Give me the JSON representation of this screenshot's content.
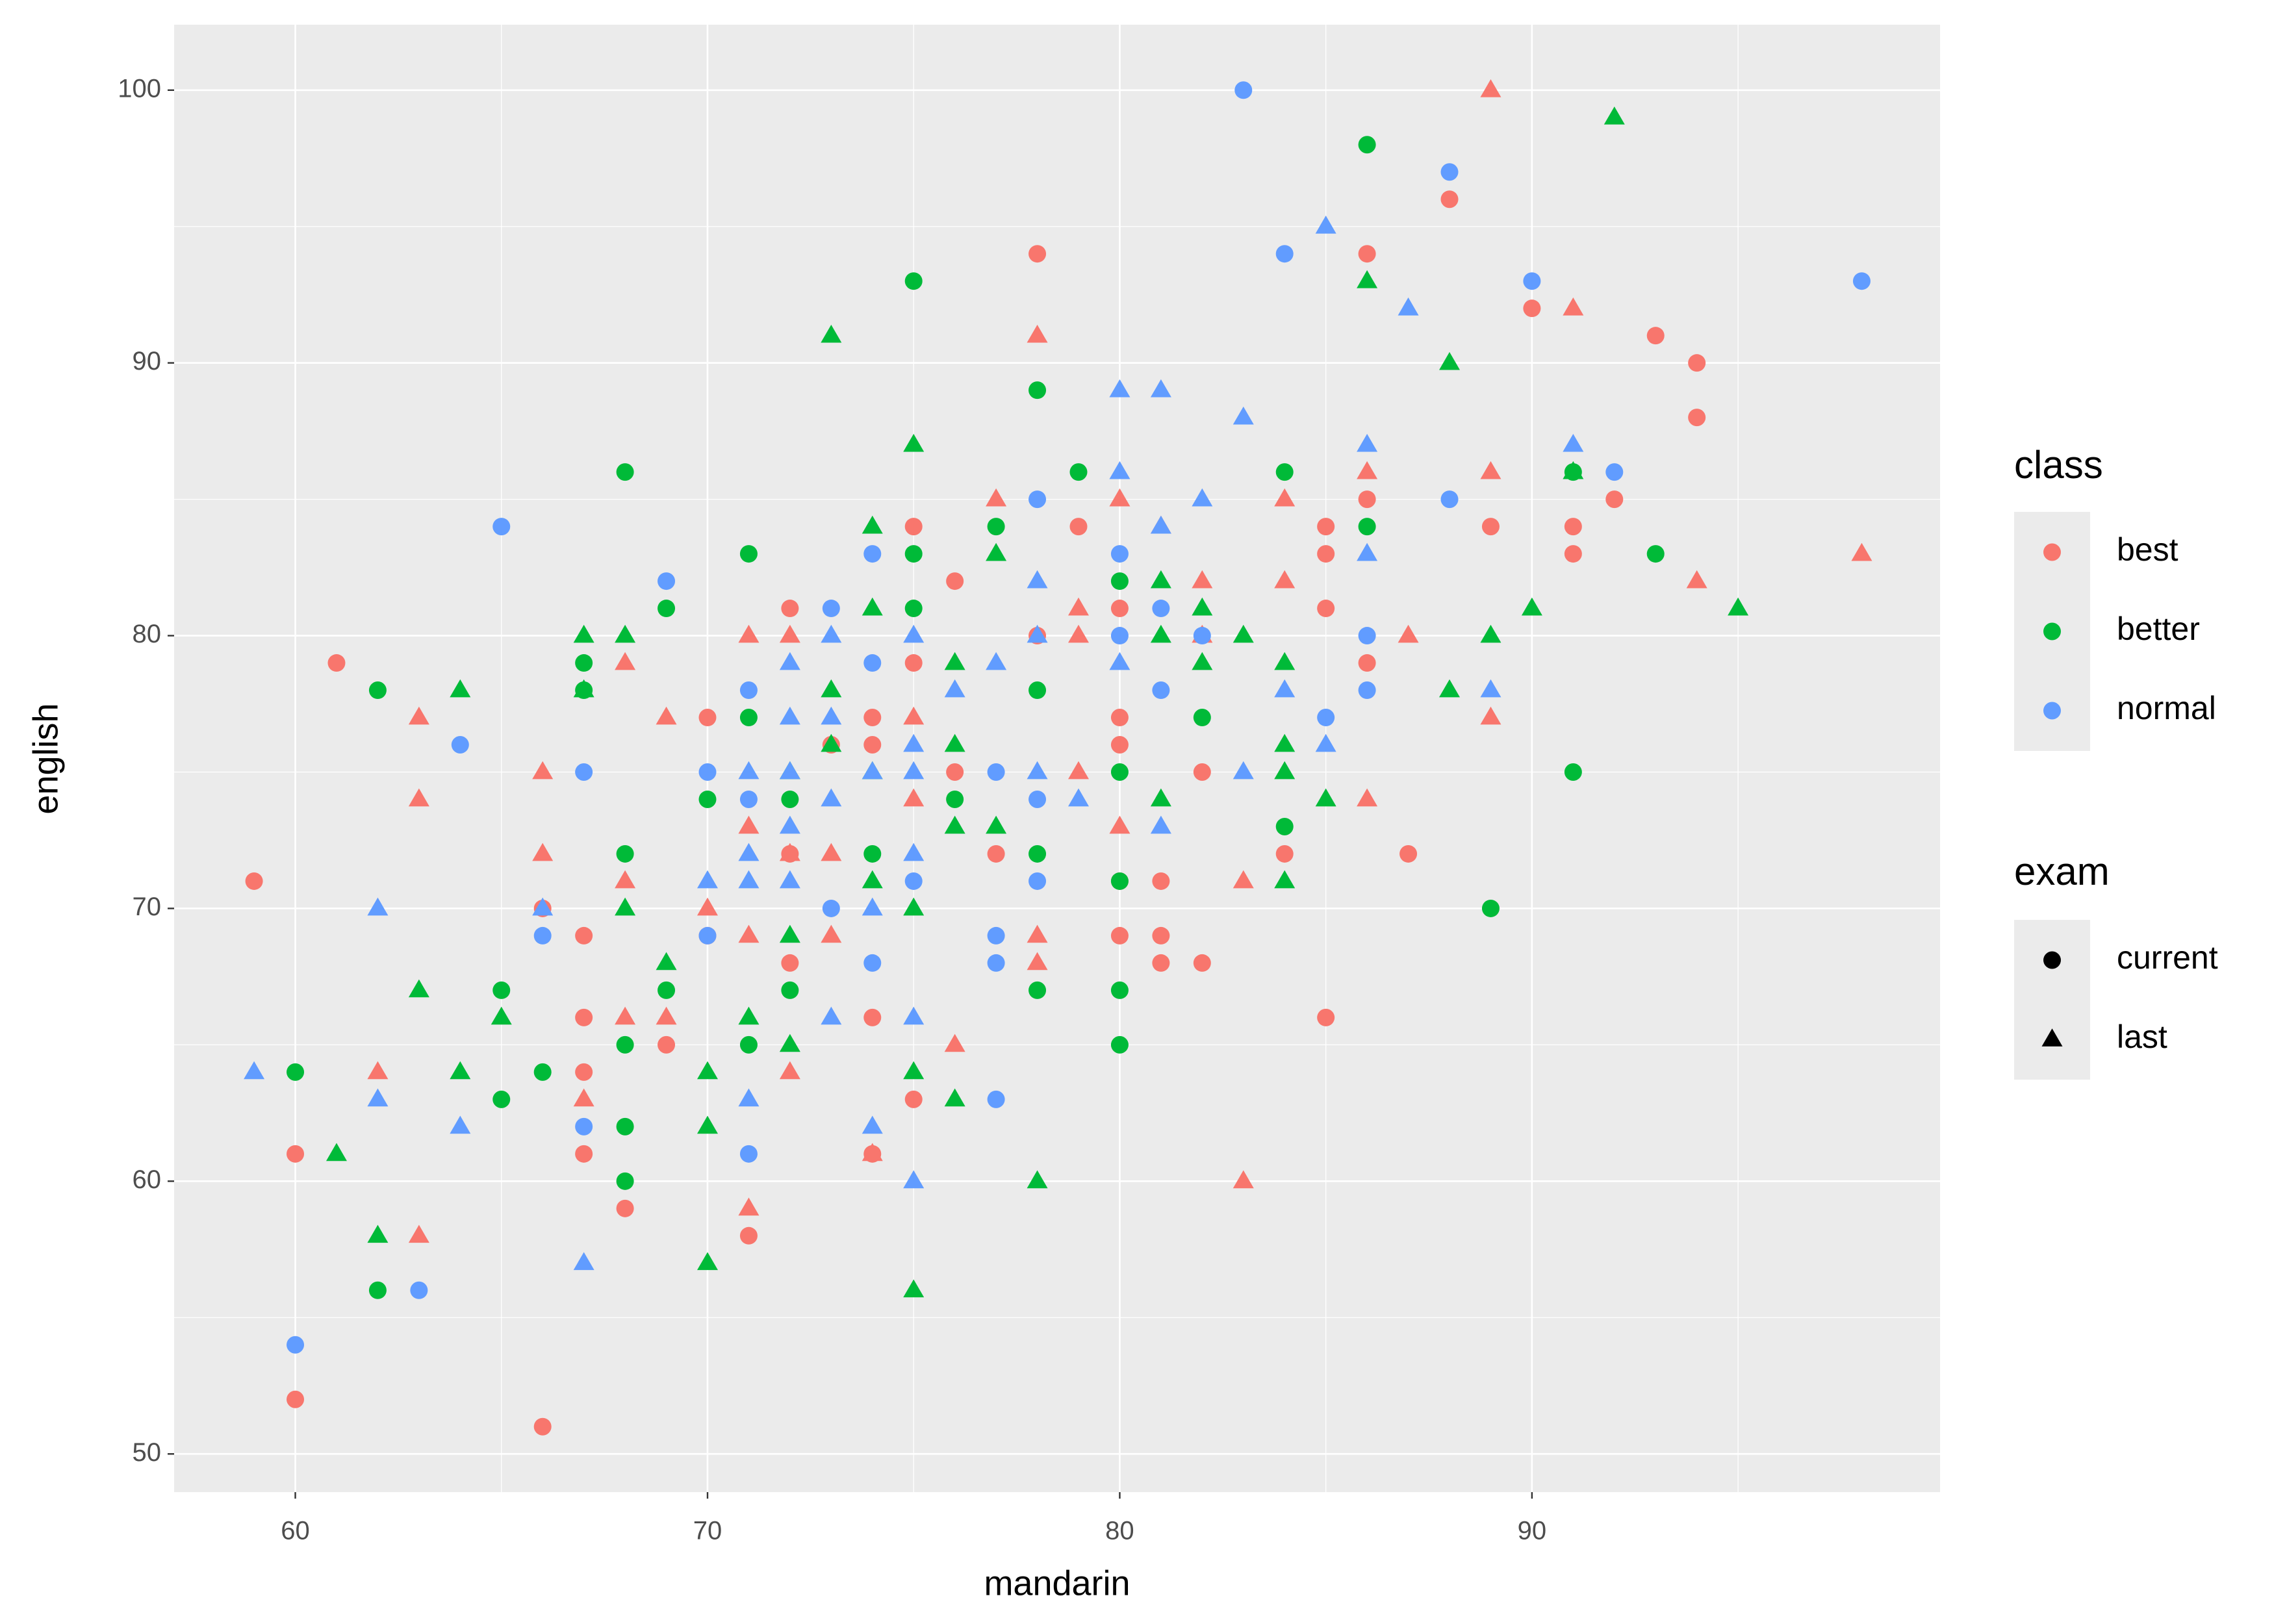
{
  "chart_data": {
    "type": "scatter",
    "xlabel": "mandarin",
    "ylabel": "english",
    "xlim": [
      57.06,
      99.9
    ],
    "ylim": [
      48.6,
      102.4
    ],
    "xticks": [
      60,
      70,
      80,
      90
    ],
    "yticks": [
      50,
      60,
      70,
      80,
      90,
      100
    ],
    "x_minor_ticks": [
      65,
      75,
      85,
      95
    ],
    "y_minor_ticks": [
      55,
      65,
      75,
      85,
      95
    ],
    "grid": true,
    "background": "#EBEBEB",
    "legend_position": "right",
    "legend": {
      "title": "class"
    },
    "shape_legend": {
      "title": "exam",
      "levels": [
        {
          "name": "current",
          "shape": "circle"
        },
        {
          "name": "last",
          "shape": "triangle"
        }
      ]
    },
    "series": [
      {
        "name": "best",
        "color": "#F8766D",
        "groups": [
          {
            "x": [
              59,
              60,
              60,
              61,
              66,
              66,
              67,
              67,
              67,
              67,
              68,
              69,
              70,
              70,
              71,
              72,
              72,
              72,
              73,
              74,
              74,
              74,
              74,
              75,
              75,
              75,
              76,
              76,
              77,
              78,
              78,
              79,
              80,
              80,
              80,
              80,
              80,
              81,
              81,
              81,
              82,
              82,
              84,
              85,
              85,
              85,
              85,
              86,
              86,
              86,
              87,
              88,
              89,
              90,
              91,
              91,
              92,
              93,
              94,
              94
            ],
            "y": [
              71,
              61,
              52,
              79,
              51,
              70,
              69,
              66,
              64,
              61,
              59,
              65,
              77,
              69,
              58,
              81,
              68,
              72,
              76,
              77,
              76,
              66,
              61,
              84,
              79,
              63,
              82,
              75,
              72,
              94,
              80,
              84,
              81,
              77,
              76,
              71,
              69,
              71,
              69,
              68,
              75,
              68,
              72,
              84,
              83,
              81,
              66,
              94,
              85,
              79,
              72,
              96,
              84,
              92,
              84,
              83,
              85,
              91,
              90,
              88
            ]
          },
          {
            "x": [
              63,
              63,
              62,
              63,
              66,
              66,
              67,
              68,
              68,
              68,
              69,
              69,
              70,
              71,
              71,
              71,
              71,
              72,
              72,
              72,
              73,
              73,
              74,
              75,
              75,
              76,
              77,
              78,
              78,
              78,
              79,
              79,
              79,
              80,
              80,
              81,
              82,
              82,
              83,
              83,
              84,
              84,
              86,
              86,
              87,
              89,
              89,
              89,
              91,
              94,
              98
            ],
            "y": [
              77,
              74,
              64,
              58,
              75,
              72,
              63,
              79,
              71,
              66,
              77,
              66,
              70,
              80,
              73,
              69,
              59,
              80,
              72,
              64,
              72,
              69,
              61,
              77,
              74,
              65,
              85,
              91,
              69,
              68,
              81,
              80,
              75,
              85,
              73,
              84,
              82,
              80,
              71,
              60,
              85,
              82,
              86,
              74,
              80,
              100,
              86,
              77,
              92,
              82,
              83
            ]
          }
        ]
      },
      {
        "name": "better",
        "color": "#00BA38",
        "groups": [
          {
            "x": [
              60,
              62,
              62,
              65,
              65,
              66,
              67,
              67,
              68,
              68,
              68,
              68,
              68,
              69,
              69,
              70,
              71,
              71,
              71,
              72,
              72,
              74,
              75,
              75,
              75,
              76,
              77,
              78,
              78,
              78,
              78,
              79,
              80,
              80,
              80,
              80,
              80,
              82,
              84,
              84,
              86,
              86,
              89,
              91,
              91,
              93
            ],
            "y": [
              64,
              78,
              56,
              67,
              63,
              64,
              79,
              78,
              86,
              72,
              65,
              62,
              60,
              81,
              67,
              74,
              83,
              77,
              65,
              74,
              67,
              72,
              93,
              83,
              81,
              74,
              84,
              89,
              78,
              72,
              67,
              86,
              82,
              75,
              71,
              67,
              65,
              77,
              86,
              73,
              98,
              84,
              70,
              75,
              86,
              83
            ]
          },
          {
            "x": [
              61,
              62,
              63,
              64,
              64,
              65,
              67,
              67,
              68,
              68,
              69,
              70,
              70,
              70,
              71,
              72,
              72,
              72,
              73,
              73,
              73,
              74,
              74,
              74,
              74,
              75,
              75,
              75,
              75,
              76,
              76,
              76,
              76,
              77,
              77,
              78,
              81,
              81,
              81,
              82,
              82,
              83,
              84,
              84,
              84,
              84,
              85,
              86,
              88,
              88,
              89,
              90,
              91,
              92,
              95
            ],
            "y": [
              61,
              58,
              67,
              78,
              64,
              66,
              80,
              78,
              80,
              70,
              68,
              64,
              62,
              57,
              66,
              75,
              69,
              65,
              91,
              78,
              76,
              84,
              81,
              75,
              71,
              87,
              70,
              64,
              56,
              79,
              76,
              73,
              63,
              83,
              73,
              60,
              82,
              80,
              74,
              81,
              79,
              80,
              79,
              76,
              75,
              71,
              74,
              93,
              90,
              78,
              80,
              81,
              86,
              99,
              81
            ]
          }
        ]
      },
      {
        "name": "normal",
        "color": "#619CFF",
        "groups": [
          {
            "x": [
              60,
              63,
              64,
              65,
              66,
              67,
              67,
              69,
              70,
              70,
              71,
              71,
              71,
              73,
              73,
              74,
              74,
              74,
              75,
              77,
              77,
              77,
              77,
              78,
              78,
              78,
              80,
              80,
              81,
              81,
              82,
              83,
              84,
              85,
              86,
              86,
              88,
              88,
              90,
              92,
              98
            ],
            "y": [
              54,
              56,
              76,
              84,
              69,
              75,
              62,
              82,
              75,
              69,
              78,
              74,
              61,
              81,
              70,
              83,
              79,
              68,
              71,
              75,
              69,
              68,
              63,
              85,
              74,
              71,
              83,
              80,
              81,
              78,
              80,
              100,
              94,
              77,
              80,
              78,
              97,
              85,
              93,
              86,
              93
            ]
          },
          {
            "x": [
              59,
              62,
              62,
              64,
              66,
              67,
              70,
              71,
              71,
              71,
              71,
              72,
              72,
              72,
              72,
              72,
              73,
              73,
              73,
              73,
              74,
              74,
              74,
              75,
              75,
              75,
              75,
              75,
              75,
              76,
              77,
              78,
              78,
              78,
              79,
              80,
              80,
              80,
              81,
              81,
              81,
              82,
              83,
              83,
              84,
              85,
              85,
              86,
              86,
              87,
              89,
              91
            ],
            "y": [
              64,
              70,
              63,
              62,
              70,
              57,
              71,
              75,
              72,
              71,
              63,
              79,
              77,
              75,
              73,
              71,
              80,
              77,
              74,
              66,
              75,
              70,
              62,
              80,
              76,
              75,
              72,
              66,
              60,
              78,
              79,
              82,
              80,
              75,
              74,
              89,
              86,
              79,
              89,
              84,
              73,
              85,
              88,
              75,
              78,
              95,
              76,
              87,
              83,
              92,
              78,
              87
            ]
          }
        ]
      }
    ]
  }
}
